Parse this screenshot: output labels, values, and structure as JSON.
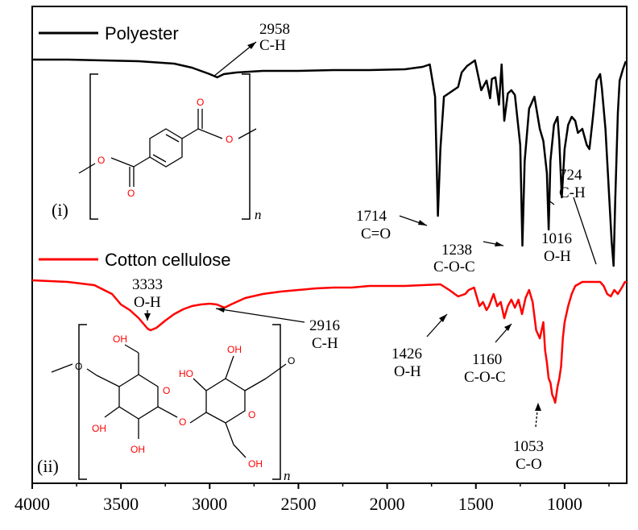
{
  "chart_data": {
    "type": "line",
    "title": "",
    "xlabel": "",
    "ylabel": "",
    "xlim": [
      4000,
      650
    ],
    "x_reversed": true,
    "x_ticks": [
      4000,
      3500,
      3000,
      2500,
      2000,
      1500,
      1000
    ],
    "x_tick_labels": [
      "4000",
      "3500",
      "3000",
      "2500",
      "2000",
      "1500",
      "1000"
    ],
    "grid": false,
    "legend_position": "top-left",
    "legend": [
      "Polyester",
      "Cotton cellulose"
    ],
    "y_units": "arbitrary (stacked transmittance)",
    "series": [
      {
        "name": "Polyester",
        "color": "#000000",
        "points": [
          [
            4000,
            74
          ],
          [
            3800,
            74
          ],
          [
            3600,
            75
          ],
          [
            3400,
            76
          ],
          [
            3200,
            79
          ],
          [
            3100,
            84
          ],
          [
            3000,
            92
          ],
          [
            2958,
            96
          ],
          [
            2920,
            92
          ],
          [
            2850,
            90
          ],
          [
            2700,
            88
          ],
          [
            2500,
            88
          ],
          [
            2300,
            87
          ],
          [
            2100,
            87
          ],
          [
            1900,
            86
          ],
          [
            1800,
            83
          ],
          [
            1760,
            80
          ],
          [
            1730,
            120
          ],
          [
            1714,
            268
          ],
          [
            1700,
            185
          ],
          [
            1680,
            120
          ],
          [
            1600,
            108
          ],
          [
            1580,
            90
          ],
          [
            1550,
            82
          ],
          [
            1505,
            75
          ],
          [
            1470,
            112
          ],
          [
            1440,
            100
          ],
          [
            1420,
            122
          ],
          [
            1410,
            98
          ],
          [
            1390,
            96
          ],
          [
            1370,
            130
          ],
          [
            1355,
            80
          ],
          [
            1340,
            150
          ],
          [
            1320,
            116
          ],
          [
            1300,
            112
          ],
          [
            1280,
            118
          ],
          [
            1250,
            180
          ],
          [
            1238,
            305
          ],
          [
            1225,
            200
          ],
          [
            1200,
            135
          ],
          [
            1170,
            120
          ],
          [
            1140,
            160
          ],
          [
            1120,
            175
          ],
          [
            1100,
            215
          ],
          [
            1090,
            285
          ],
          [
            1080,
            200
          ],
          [
            1060,
            155
          ],
          [
            1040,
            145
          ],
          [
            1030,
            175
          ],
          [
            1016,
            245
          ],
          [
            1000,
            185
          ],
          [
            980,
            155
          ],
          [
            960,
            145
          ],
          [
            940,
            150
          ],
          [
            925,
            165
          ],
          [
            900,
            160
          ],
          [
            875,
            180
          ],
          [
            860,
            185
          ],
          [
            840,
            145
          ],
          [
            820,
            100
          ],
          [
            800,
            92
          ],
          [
            790,
            110
          ],
          [
            770,
            160
          ],
          [
            750,
            240
          ],
          [
            735,
            300
          ],
          [
            724,
            330
          ],
          [
            715,
            250
          ],
          [
            700,
            140
          ],
          [
            690,
            100
          ],
          [
            670,
            85
          ],
          [
            655,
            76
          ]
        ]
      },
      {
        "name": "Cotton cellulose",
        "color": "#ff0000",
        "points": [
          [
            4000,
            348
          ],
          [
            3800,
            350
          ],
          [
            3650,
            354
          ],
          [
            3550,
            365
          ],
          [
            3500,
            378
          ],
          [
            3450,
            385
          ],
          [
            3400,
            395
          ],
          [
            3350,
            408
          ],
          [
            3333,
            410
          ],
          [
            3300,
            407
          ],
          [
            3250,
            398
          ],
          [
            3200,
            390
          ],
          [
            3150,
            384
          ],
          [
            3100,
            380
          ],
          [
            3050,
            378
          ],
          [
            3000,
            377
          ],
          [
            2960,
            378
          ],
          [
            2916,
            382
          ],
          [
            2880,
            378
          ],
          [
            2850,
            375
          ],
          [
            2800,
            370
          ],
          [
            2700,
            365
          ],
          [
            2600,
            362
          ],
          [
            2500,
            360
          ],
          [
            2400,
            358
          ],
          [
            2300,
            357
          ],
          [
            2200,
            357
          ],
          [
            2100,
            355
          ],
          [
            2000,
            355
          ],
          [
            1900,
            355
          ],
          [
            1800,
            354
          ],
          [
            1700,
            353
          ],
          [
            1650,
            360
          ],
          [
            1600,
            368
          ],
          [
            1560,
            365
          ],
          [
            1540,
            360
          ],
          [
            1510,
            357
          ],
          [
            1480,
            380
          ],
          [
            1460,
            375
          ],
          [
            1440,
            385
          ],
          [
            1426,
            380
          ],
          [
            1400,
            365
          ],
          [
            1380,
            380
          ],
          [
            1360,
            375
          ],
          [
            1340,
            395
          ],
          [
            1320,
            380
          ],
          [
            1300,
            372
          ],
          [
            1280,
            382
          ],
          [
            1260,
            372
          ],
          [
            1240,
            390
          ],
          [
            1220,
            370
          ],
          [
            1200,
            360
          ],
          [
            1180,
            375
          ],
          [
            1160,
            410
          ],
          [
            1140,
            420
          ],
          [
            1120,
            400
          ],
          [
            1110,
            435
          ],
          [
            1100,
            450
          ],
          [
            1090,
            470
          ],
          [
            1080,
            475
          ],
          [
            1070,
            490
          ],
          [
            1060,
            495
          ],
          [
            1053,
            500
          ],
          [
            1040,
            480
          ],
          [
            1030,
            470
          ],
          [
            1020,
            455
          ],
          [
            1010,
            420
          ],
          [
            1000,
            400
          ],
          [
            980,
            380
          ],
          [
            960,
            365
          ],
          [
            940,
            355
          ],
          [
            900,
            350
          ],
          [
            850,
            350
          ],
          [
            800,
            350
          ],
          [
            780,
            355
          ],
          [
            760,
            365
          ],
          [
            740,
            368
          ],
          [
            720,
            360
          ],
          [
            700,
            365
          ],
          [
            680,
            358
          ],
          [
            660,
            350
          ],
          [
            650,
            350
          ]
        ]
      }
    ],
    "annotations": [
      {
        "label": "2958",
        "sublabel": "C-H"
      },
      {
        "label": "1714",
        "sublabel": "C=O"
      },
      {
        "label": "1238",
        "sublabel": "C-O-C"
      },
      {
        "label": "1016",
        "sublabel": "O-H"
      },
      {
        "label": "724",
        "sublabel": "C-H"
      },
      {
        "label": "3333",
        "sublabel": "O-H"
      },
      {
        "label": "2916",
        "sublabel": "C-H"
      },
      {
        "label": "1426",
        "sublabel": "O-H"
      },
      {
        "label": "1160",
        "sublabel": "C-O-C"
      },
      {
        "label": "1053",
        "sublabel": "C-O"
      }
    ]
  },
  "structures": {
    "polyester_label": "(i)",
    "cellulose_label": "(ii)",
    "repeat_subscript": "n",
    "atom_O": "O",
    "atom_OH": "OH",
    "atom_HO": "HO"
  }
}
